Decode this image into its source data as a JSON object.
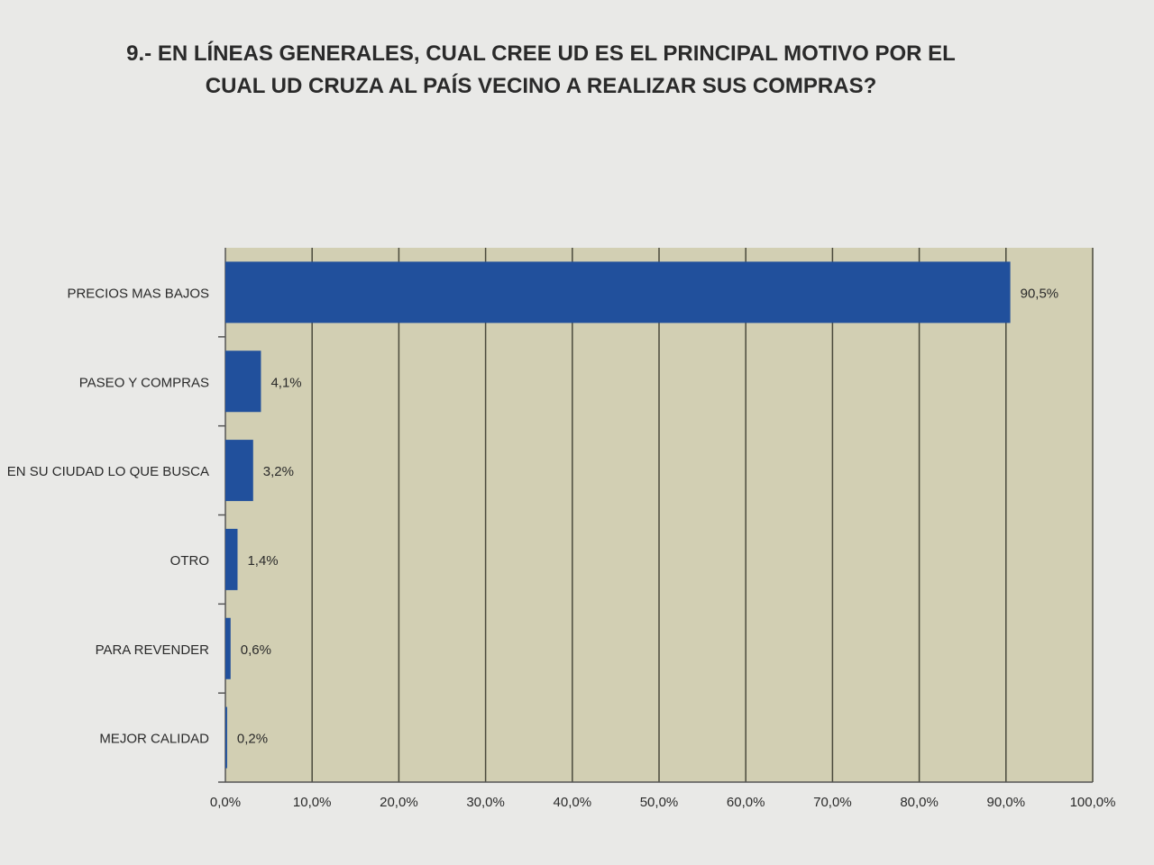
{
  "chart_data": {
    "type": "bar",
    "orientation": "horizontal",
    "title_lines": [
      "9.- EN LÍNEAS GENERALES, CUAL CREE UD ES EL PRINCIPAL MOTIVO POR EL",
      "CUAL UD CRUZA AL PAÍS VECINO A REALIZAR SUS COMPRAS?"
    ],
    "categories": [
      "PRECIOS MAS BAJOS",
      "PASEO Y COMPRAS",
      "EN SU CIUDAD LO QUE BUSCA",
      "OTRO",
      "PARA REVENDER",
      "MEJOR CALIDAD"
    ],
    "values": [
      90.5,
      4.1,
      3.2,
      1.4,
      0.6,
      0.2
    ],
    "data_labels": [
      "90,5%",
      "4,1%",
      "3,2%",
      "1,4%",
      "0,6%",
      "0,2%"
    ],
    "xlim": [
      0,
      100
    ],
    "x_ticks": [
      "0,0%",
      "10,0%",
      "20,0%",
      "30,0%",
      "40,0%",
      "50,0%",
      "60,0%",
      "70,0%",
      "80,0%",
      "90,0%",
      "100,0%"
    ],
    "xlabel": "",
    "ylabel": "",
    "grid": "vertical",
    "colors": {
      "bar": "#21509c",
      "plot_bg": "#d2cfb3",
      "grid": "#4a4a3c"
    }
  }
}
